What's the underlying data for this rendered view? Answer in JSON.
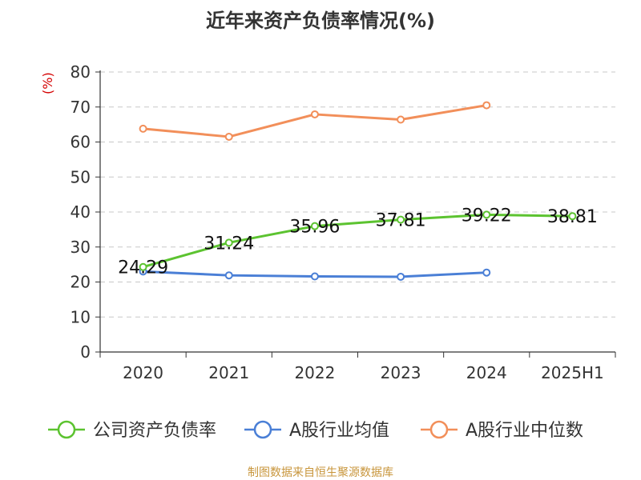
{
  "chart_data": {
    "type": "line",
    "title": "近年来资产负债率情况(%)",
    "ylabel": "(%)",
    "xlabel": "",
    "categories": [
      "2020",
      "2021",
      "2022",
      "2023",
      "2024",
      "2025H1"
    ],
    "ylim": [
      0,
      80
    ],
    "yticks": [
      "0",
      "10",
      "20",
      "30",
      "40",
      "50",
      "60",
      "70",
      "80"
    ],
    "grid": true,
    "legend": "bottom",
    "series": [
      {
        "name": "公司资产负债率",
        "color": "#5cc330",
        "values": [
          24.29,
          31.24,
          35.96,
          37.81,
          39.22,
          38.81
        ],
        "labels": [
          "24.29",
          "31.24",
          "35.96",
          "37.81",
          "39.22",
          "38.81"
        ]
      },
      {
        "name": "A股行业均值",
        "color": "#4a7fd6",
        "values": [
          23.0,
          21.9,
          21.6,
          21.5,
          22.7,
          null
        ]
      },
      {
        "name": "A股行业中位数",
        "color": "#f28f5a",
        "values": [
          63.8,
          61.5,
          67.9,
          66.4,
          70.5,
          null
        ]
      }
    ],
    "source": "制图数据来自恒生聚源数据库"
  }
}
